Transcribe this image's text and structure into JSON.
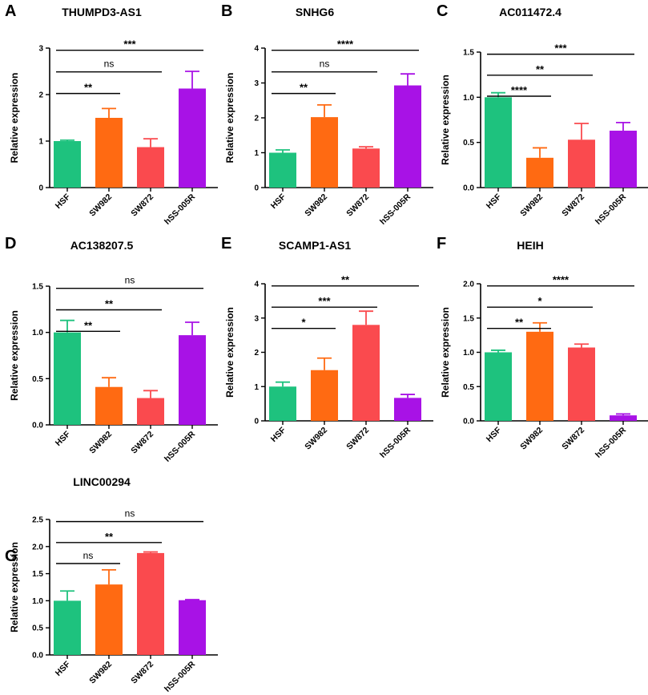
{
  "figure": {
    "colors": [
      "#1ec27e",
      "#ff6a12",
      "#fa4a4e",
      "#a812e6"
    ]
  },
  "chart_data": [
    {
      "type": "bar",
      "panel": "A",
      "title": "THUMPD3-AS1",
      "ylabel": "Relative expression",
      "categories": [
        "HSF",
        "SW982",
        "SW872",
        "hSS-005R"
      ],
      "values": [
        1.0,
        1.5,
        0.87,
        2.13
      ],
      "errors": [
        0.02,
        0.2,
        0.18,
        0.37
      ],
      "ylim": [
        0,
        3
      ],
      "yticks": [
        0,
        1,
        2,
        3
      ],
      "tick_labels": [
        "0",
        "1",
        "2",
        "3"
      ],
      "comparisons": [
        {
          "from": "HSF",
          "to": "SW982",
          "label": "**"
        },
        {
          "from": "HSF",
          "to": "SW872",
          "label": "ns"
        },
        {
          "from": "HSF",
          "to": "hSS-005R",
          "label": "***"
        }
      ]
    },
    {
      "type": "bar",
      "panel": "B",
      "title": "SNHG6",
      "ylabel": "Relative expression",
      "categories": [
        "HSF",
        "SW982",
        "SW872",
        "hSS-005R"
      ],
      "values": [
        1.0,
        2.02,
        1.12,
        2.93
      ],
      "errors": [
        0.08,
        0.35,
        0.05,
        0.33
      ],
      "ylim": [
        0,
        4
      ],
      "yticks": [
        0,
        1,
        2,
        3,
        4
      ],
      "tick_labels": [
        "0",
        "1",
        "2",
        "3",
        "4"
      ],
      "comparisons": [
        {
          "from": "HSF",
          "to": "SW982",
          "label": "**"
        },
        {
          "from": "HSF",
          "to": "SW872",
          "label": "ns"
        },
        {
          "from": "HSF",
          "to": "hSS-005R",
          "label": "****"
        }
      ]
    },
    {
      "type": "bar",
      "panel": "C",
      "title": "AC011472.4",
      "ylabel": "Relative expression",
      "categories": [
        "HSF",
        "SW982",
        "SW872",
        "hSS-005R"
      ],
      "values": [
        1.0,
        0.33,
        0.53,
        0.63
      ],
      "errors": [
        0.05,
        0.11,
        0.18,
        0.09
      ],
      "ylim": [
        0,
        1.5
      ],
      "yticks": [
        0,
        0.5,
        1.0,
        1.5
      ],
      "tick_labels": [
        "0.0",
        "0.5",
        "1.0",
        "1.5"
      ],
      "comparisons": [
        {
          "from": "HSF",
          "to": "SW982",
          "label": "****"
        },
        {
          "from": "HSF",
          "to": "SW872",
          "label": "**"
        },
        {
          "from": "HSF",
          "to": "hSS-005R",
          "label": "***"
        }
      ]
    },
    {
      "type": "bar",
      "panel": "D",
      "title": "AC138207.5",
      "ylabel": "Relative expression",
      "categories": [
        "HSF",
        "SW982",
        "SW872",
        "hSS-005R"
      ],
      "values": [
        1.0,
        0.41,
        0.29,
        0.97
      ],
      "errors": [
        0.13,
        0.1,
        0.08,
        0.14
      ],
      "ylim": [
        0,
        1.5
      ],
      "yticks": [
        0,
        0.5,
        1.0,
        1.5
      ],
      "tick_labels": [
        "0.0",
        "0.5",
        "1.0",
        "1.5"
      ],
      "comparisons": [
        {
          "from": "HSF",
          "to": "SW982",
          "label": "**"
        },
        {
          "from": "HSF",
          "to": "SW872",
          "label": "**"
        },
        {
          "from": "HSF",
          "to": "hSS-005R",
          "label": "ns"
        }
      ]
    },
    {
      "type": "bar",
      "panel": "E",
      "title": "SCAMP1-AS1",
      "ylabel": "Relative expression",
      "categories": [
        "HSF",
        "SW982",
        "SW872",
        "hSS-005R"
      ],
      "values": [
        1.0,
        1.48,
        2.8,
        0.67
      ],
      "errors": [
        0.13,
        0.35,
        0.4,
        0.1
      ],
      "ylim": [
        0,
        4
      ],
      "yticks": [
        0,
        1,
        2,
        3,
        4
      ],
      "tick_labels": [
        "0",
        "1",
        "2",
        "3",
        "4"
      ],
      "comparisons": [
        {
          "from": "HSF",
          "to": "SW982",
          "label": "*"
        },
        {
          "from": "HSF",
          "to": "SW872",
          "label": "***"
        },
        {
          "from": "HSF",
          "to": "hSS-005R",
          "label": "**"
        }
      ]
    },
    {
      "type": "bar",
      "panel": "F",
      "title": "HEIH",
      "ylabel": "Relative expression",
      "categories": [
        "HSF",
        "SW982",
        "SW872",
        "hSS-005R"
      ],
      "values": [
        1.0,
        1.3,
        1.07,
        0.08
      ],
      "errors": [
        0.03,
        0.13,
        0.05,
        0.02
      ],
      "ylim": [
        0,
        2.0
      ],
      "yticks": [
        0,
        0.5,
        1.0,
        1.5,
        2.0
      ],
      "tick_labels": [
        "0.0",
        "0.5",
        "1.0",
        "1.5",
        "2.0"
      ],
      "comparisons": [
        {
          "from": "HSF",
          "to": "SW982",
          "label": "**"
        },
        {
          "from": "HSF",
          "to": "SW872",
          "label": "*"
        },
        {
          "from": "HSF",
          "to": "hSS-005R",
          "label": "****"
        }
      ]
    },
    {
      "type": "bar",
      "panel": "G",
      "title": "LINC00294",
      "ylabel": "Relative expression",
      "categories": [
        "HSF",
        "SW982",
        "SW872",
        "hSS-005R"
      ],
      "values": [
        1.0,
        1.3,
        1.88,
        1.01
      ],
      "errors": [
        0.18,
        0.27,
        0.02,
        0.01
      ],
      "ylim": [
        0,
        2.5
      ],
      "yticks": [
        0,
        0.5,
        1.0,
        1.5,
        2.0,
        2.5
      ],
      "tick_labels": [
        "0.0",
        "0.5",
        "1.0",
        "1.5",
        "2.0",
        "2.5"
      ],
      "comparisons": [
        {
          "from": "HSF",
          "to": "SW982",
          "label": "ns"
        },
        {
          "from": "HSF",
          "to": "SW872",
          "label": "**"
        },
        {
          "from": "HSF",
          "to": "hSS-005R",
          "label": "ns"
        }
      ]
    }
  ]
}
